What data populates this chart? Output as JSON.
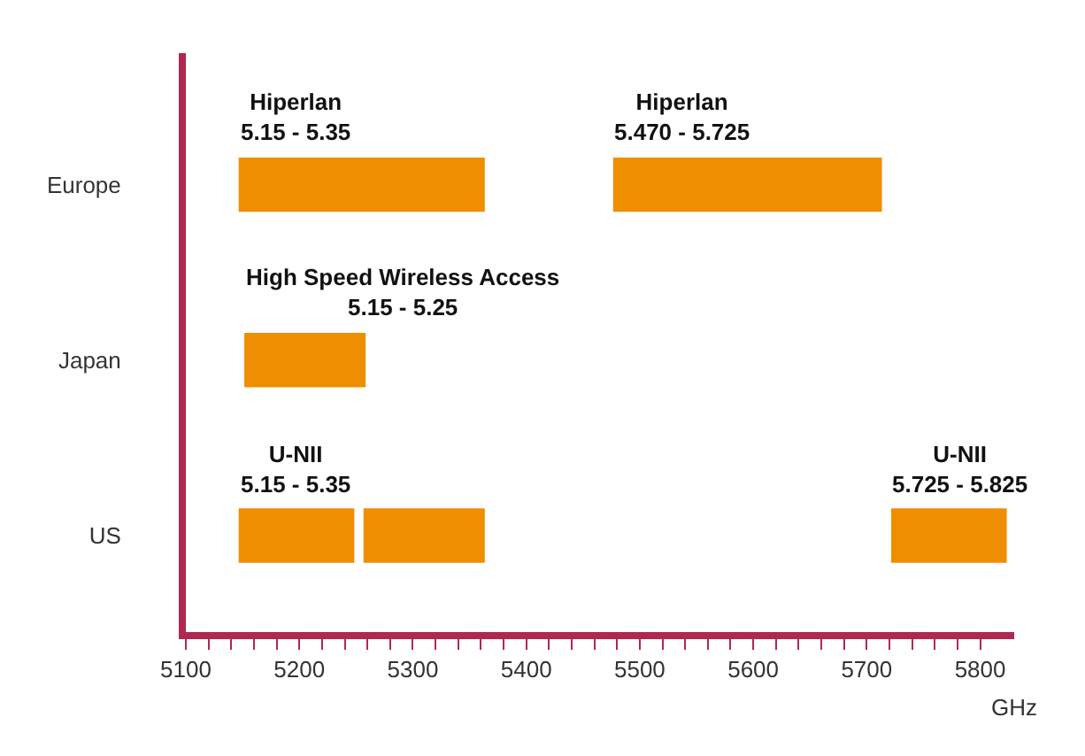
{
  "chart_data": {
    "type": "bar",
    "orientation": "horizontal",
    "categories": [
      "Europe",
      "Japan",
      "US"
    ],
    "series": [
      {
        "color": "#ee8e00",
        "base": [
          5145,
          5150,
          5145
        ],
        "values": [
          220,
          110,
          105
        ]
      },
      {
        "color": "#ee8e00",
        "base": [
          5475,
          null,
          5255
        ],
        "values": [
          240,
          null,
          110
        ]
      },
      {
        "color": "#ee8e00",
        "base": [
          null,
          null,
          5720
        ],
        "values": [
          null,
          null,
          105
        ]
      }
    ],
    "xlabel": "GHz",
    "xlim": [
      5100,
      5830
    ],
    "xticks": [
      5100,
      {
        "value": 5120,
        "label": null
      },
      {
        "value": 5140,
        "label": null
      },
      {
        "value": 5160,
        "label": null
      },
      {
        "value": 5180,
        "label": null
      },
      5200,
      {
        "value": 5220,
        "label": null
      },
      {
        "value": 5240,
        "label": null
      },
      {
        "value": 5260,
        "label": null
      },
      {
        "value": 5280,
        "label": null
      },
      5300,
      {
        "value": 5320,
        "label": null
      },
      {
        "value": 5340,
        "label": null
      },
      {
        "value": 5360,
        "label": null
      },
      {
        "value": 5380,
        "label": null
      },
      5400,
      {
        "value": 5420,
        "label": null
      },
      {
        "value": 5440,
        "label": null
      },
      {
        "value": 5460,
        "label": null
      },
      {
        "value": 5480,
        "label": null
      },
      5500,
      {
        "value": 5520,
        "label": null
      },
      {
        "value": 5540,
        "label": null
      },
      {
        "value": 5560,
        "label": null
      },
      {
        "value": 5580,
        "label": null
      },
      5600,
      {
        "value": 5620,
        "label": null
      },
      {
        "value": 5640,
        "label": null
      },
      {
        "value": 5660,
        "label": null
      },
      {
        "value": 5680,
        "label": null
      },
      5700,
      {
        "value": 5720,
        "label": null
      },
      {
        "value": 5740,
        "label": null
      },
      {
        "value": 5760,
        "label": null
      },
      {
        "value": 5780,
        "label": null
      },
      5800
    ],
    "annotations": [
      {
        "text": "Hiperlan\n5.15 - 5.35",
        "x": 5145,
        "y": "Europe"
      },
      {
        "text": "Hiperlan\n5.470 - 5.725",
        "x": 5475,
        "y": "Europe"
      },
      {
        "text": "High Speed Wireless Access\n5.15 - 5.25",
        "x": 5150,
        "y": "Japan"
      },
      {
        "text": "U-NII\n5.15 - 5.35",
        "x": 5145,
        "y": "US"
      },
      {
        "text": "U-NII\n5.725 - 5.825",
        "x": 5720,
        "y": "US"
      }
    ]
  }
}
